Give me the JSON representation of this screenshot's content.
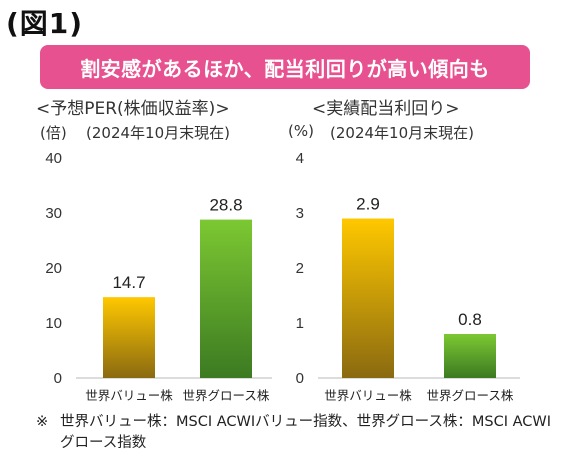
{
  "figure_label": "(図1)",
  "headline": "割安感があるほか、配当利回りが高い傾向も",
  "footnote_mark": "※",
  "footnote": "世界バリュー株：MSCI ACWIバリュー指数、世界グロース株：MSCI ACWIグロース指数",
  "colors": {
    "banner": "#e8518f",
    "value_bar_top": "#ffc800",
    "value_bar_bottom": "#8a6a10",
    "growth_bar_top": "#7cc832",
    "growth_bar_bottom": "#3c7a22"
  },
  "chart_data": [
    {
      "type": "bar",
      "title": "<予想PER(株価収益率)>",
      "subtitle": "(2024年10月末現在)",
      "ylabel": "(倍)",
      "categories": [
        "世界バリュー株",
        "世界グロース株"
      ],
      "values": [
        14.7,
        28.8
      ],
      "data_labels": [
        "14.7",
        "28.8"
      ],
      "ylim": [
        0,
        40
      ],
      "yticks": [
        "0",
        "10",
        "20",
        "30",
        "40"
      ],
      "grid": false
    },
    {
      "type": "bar",
      "title": "<実績配当利回り>",
      "subtitle": "(2024年10月末現在)",
      "ylabel": "(%)",
      "categories": [
        "世界バリュー株",
        "世界グロース株"
      ],
      "values": [
        2.9,
        0.8
      ],
      "data_labels": [
        "2.9",
        "0.8"
      ],
      "ylim": [
        0,
        4
      ],
      "yticks": [
        "0",
        "1",
        "2",
        "3",
        "4"
      ],
      "grid": false
    }
  ]
}
